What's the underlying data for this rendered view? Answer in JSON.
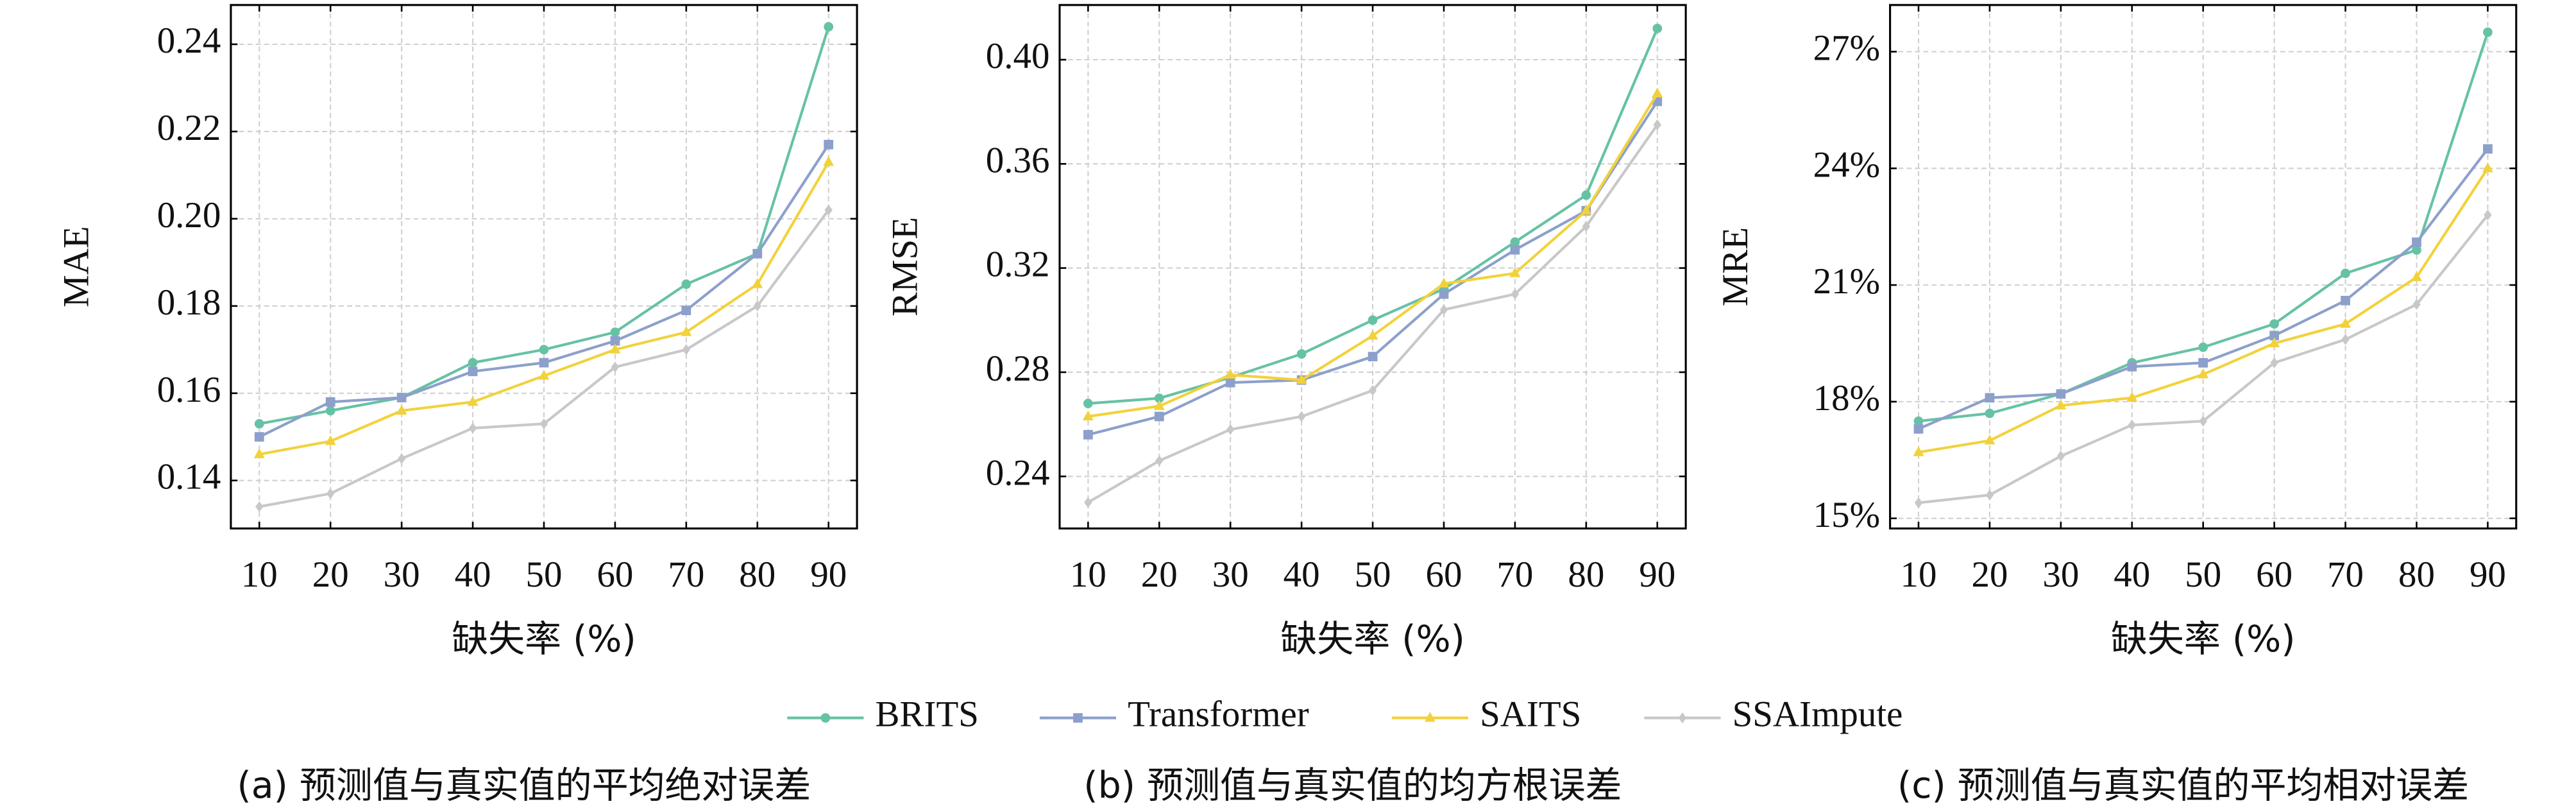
{
  "chart_data": [
    {
      "type": "line",
      "caption": "(a) 预测值与真实值的平均绝对误差",
      "xlabel": "缺失率 (%)",
      "ylabel": "MAE",
      "x": [
        10,
        20,
        30,
        40,
        50,
        60,
        70,
        80,
        90
      ],
      "xlim": [
        6,
        94
      ],
      "xticks": [
        10,
        20,
        30,
        40,
        50,
        60,
        70,
        80,
        90
      ],
      "ylim": [
        0.129,
        0.249
      ],
      "yticks": [
        0.14,
        0.16,
        0.18,
        {
          "value": 0.2,
          "label": "0.20"
        },
        0.22,
        0.24
      ],
      "grid": true,
      "series": [
        {
          "name": "BRITS",
          "color": "#66c2a5",
          "marker": "circle",
          "values": [
            0.153,
            0.156,
            0.159,
            0.167,
            0.17,
            0.174,
            0.185,
            0.192,
            0.244
          ]
        },
        {
          "name": "Transformer",
          "color": "#8da0cb",
          "marker": "square",
          "values": [
            0.15,
            0.158,
            0.159,
            0.165,
            0.167,
            0.172,
            0.179,
            0.192,
            0.217
          ]
        },
        {
          "name": "SAITS",
          "color": "#f2d23c",
          "marker": "triangle",
          "values": [
            0.146,
            0.149,
            0.156,
            0.158,
            0.164,
            0.17,
            0.174,
            0.185,
            0.213
          ]
        },
        {
          "name": "SSAImpute",
          "color": "#c8c8c8",
          "marker": "diamond",
          "values": [
            0.134,
            0.137,
            0.145,
            0.152,
            0.153,
            0.166,
            0.17,
            0.18,
            0.202
          ]
        }
      ]
    },
    {
      "type": "line",
      "caption": "(b) 预测值与真实值的均方根误差",
      "xlabel": "缺失率 (%)",
      "ylabel": "RMSE",
      "x": [
        10,
        20,
        30,
        40,
        50,
        60,
        70,
        80,
        90
      ],
      "xlim": [
        6,
        94
      ],
      "xticks": [
        10,
        20,
        30,
        40,
        50,
        60,
        70,
        80,
        90
      ],
      "ylim": [
        0.22,
        0.421
      ],
      "yticks": [
        0.24,
        0.28,
        0.32,
        0.36,
        {
          "value": 0.4,
          "label": "0.40"
        }
      ],
      "grid": true,
      "series": [
        {
          "name": "BRITS",
          "color": "#66c2a5",
          "marker": "circle",
          "values": [
            0.268,
            0.27,
            0.278,
            0.287,
            0.3,
            0.312,
            0.33,
            0.348,
            0.412
          ]
        },
        {
          "name": "Transformer",
          "color": "#8da0cb",
          "marker": "square",
          "values": [
            0.256,
            0.263,
            0.276,
            0.277,
            0.286,
            0.31,
            0.327,
            0.342,
            0.384
          ]
        },
        {
          "name": "SAITS",
          "color": "#f2d23c",
          "marker": "triangle",
          "values": [
            0.263,
            0.267,
            0.279,
            0.277,
            0.294,
            0.314,
            0.318,
            0.342,
            0.387
          ]
        },
        {
          "name": "SSAImpute",
          "color": "#c8c8c8",
          "marker": "diamond",
          "values": [
            0.23,
            0.246,
            0.258,
            0.263,
            0.273,
            0.304,
            0.31,
            0.336,
            0.375
          ]
        }
      ]
    },
    {
      "type": "line",
      "caption": "(c) 预测值与真实值的平均相对误差",
      "xlabel": "缺失率 (%)",
      "ylabel": "MRE",
      "x": [
        10,
        20,
        30,
        40,
        50,
        60,
        70,
        80,
        90
      ],
      "xlim": [
        6,
        94
      ],
      "xticks": [
        10,
        20,
        30,
        40,
        50,
        60,
        70,
        80,
        90
      ],
      "ylim": [
        14.74,
        28.2
      ],
      "yticks": [
        {
          "value": 15,
          "label": "15%"
        },
        {
          "value": 18,
          "label": "18%"
        },
        {
          "value": 21,
          "label": "21%"
        },
        {
          "value": 24,
          "label": "24%"
        },
        {
          "value": 27,
          "label": "27%"
        }
      ],
      "grid": true,
      "series": [
        {
          "name": "BRITS",
          "color": "#66c2a5",
          "marker": "circle",
          "values": [
            17.5,
            17.7,
            18.2,
            19.0,
            19.4,
            20.0,
            21.3,
            21.9,
            27.5
          ]
        },
        {
          "name": "Transformer",
          "color": "#8da0cb",
          "marker": "square",
          "values": [
            17.3,
            18.1,
            18.2,
            18.9,
            19.0,
            19.7,
            20.6,
            22.1,
            24.5
          ]
        },
        {
          "name": "SAITS",
          "color": "#f2d23c",
          "marker": "triangle",
          "values": [
            16.7,
            17.0,
            17.9,
            18.1,
            18.7,
            19.5,
            20.0,
            21.2,
            24.0
          ]
        },
        {
          "name": "SSAImpute",
          "color": "#c8c8c8",
          "marker": "diamond",
          "values": [
            15.4,
            15.6,
            16.6,
            17.4,
            17.5,
            19.0,
            19.6,
            20.5,
            22.8
          ]
        }
      ]
    }
  ]
}
